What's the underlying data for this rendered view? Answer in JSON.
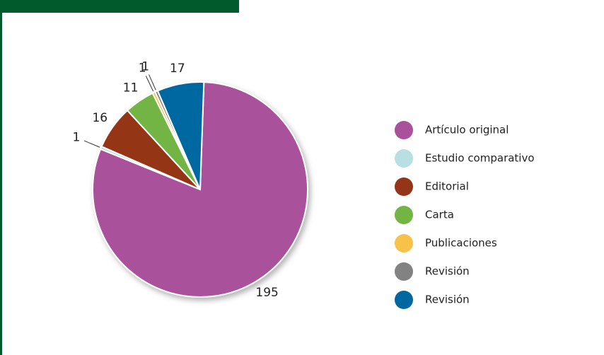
{
  "chart_data": {
    "type": "pie",
    "categories": [
      "Artículo original",
      "Estudio comparativo",
      "Editorial",
      "Carta",
      "Publicaciones",
      "Revisión",
      "Revisión"
    ],
    "values": [
      195,
      1,
      16,
      11,
      1,
      1,
      17
    ],
    "colors": [
      "#a9519a",
      "#b8e0e3",
      "#943419",
      "#72b544",
      "#f8c14a",
      "#828282",
      "#0068a0"
    ],
    "legend": "right"
  }
}
